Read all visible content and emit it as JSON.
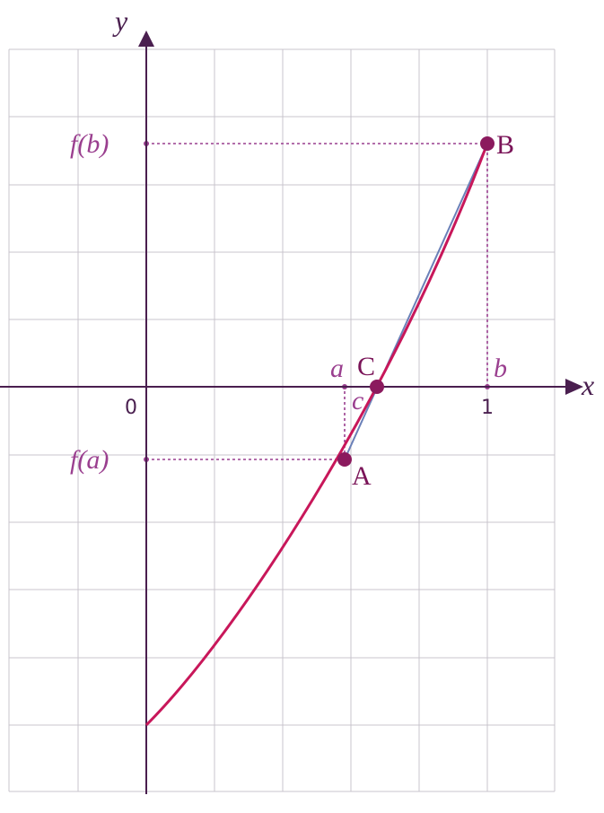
{
  "axes": {
    "x_label": "x",
    "y_label": "y",
    "origin_label": "0",
    "one_label": "1"
  },
  "labels": {
    "f_b": "f(b)",
    "f_a": "f(a)",
    "a": "a",
    "b": "b",
    "c": "c"
  },
  "points": {
    "A": "A",
    "B": "B",
    "C": "C"
  }
}
